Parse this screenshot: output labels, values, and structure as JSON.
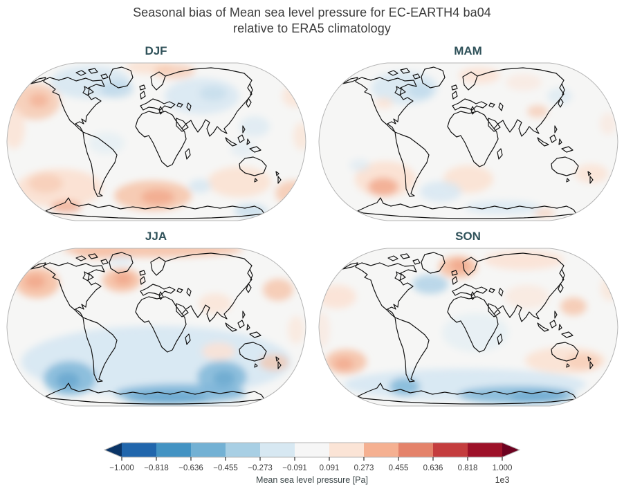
{
  "figure": {
    "title_line1": "Seasonal bias of Mean sea level pressure for EC-EARTH4 ba04",
    "title_line2": "relative to ERA5 climatology"
  },
  "chart_data": {
    "type": "heatmap",
    "subtype": "filled-contour-world-map",
    "projection": "Robinson",
    "colormap": "RdBu_r",
    "title": "Seasonal bias of Mean sea level pressure for EC-EARTH4 ba04 relative to ERA5 climatology",
    "variable": "Mean sea level pressure",
    "units": "Pa",
    "colorbar": {
      "label": "Mean sea level pressure [Pa]",
      "multiplier": "1e3",
      "ticks": [
        "−1.000",
        "−0.818",
        "−0.636",
        "−0.455",
        "−0.273",
        "−0.091",
        "0.091",
        "0.273",
        "0.455",
        "0.636",
        "0.818",
        "1.000"
      ],
      "boundaries_pa": [
        -1000,
        -818,
        -636,
        -455,
        -273,
        -91,
        91,
        273,
        455,
        636,
        818,
        1000
      ],
      "segment_colors": [
        "#2166ac",
        "#4393c3",
        "#73b1d4",
        "#a8cfe4",
        "#d7e8f2",
        "#f6f6f6",
        "#fbe4d6",
        "#f5b091",
        "#e4826a",
        "#c43d3e",
        "#9d1128"
      ],
      "extend_low_color": "#0b3567",
      "extend_high_color": "#6d0220",
      "tick_color": "#3b3b3b",
      "label_color": "#3a4547"
    },
    "map_style": {
      "background": "#f6f6f5",
      "outline_color": "#b4b4b4",
      "coastline_color": "#111111",
      "title_color": "#30525a"
    },
    "palette": {
      "b1": "#d8e8f2",
      "b2": "#b0d2e7",
      "b3": "#7cb5d8",
      "b4": "#4f97c6",
      "r1": "#fbe2d3",
      "r2": "#f6c0a4",
      "r3": "#ef9878",
      "r4": "#e27b5e"
    },
    "panels": [
      {
        "label": "DJF",
        "features": [
          [
            45,
            60,
            36,
            26,
            "r2",
            0.7
          ],
          [
            50,
            58,
            14,
            10,
            "r3",
            0.45
          ],
          [
            14,
            98,
            16,
            30,
            "r1",
            0.8
          ],
          [
            125,
            32,
            58,
            24,
            "b1",
            0.9
          ],
          [
            163,
            42,
            24,
            13,
            "b2",
            0.55
          ],
          [
            210,
            10,
            34,
            10,
            "r1",
            0.9
          ],
          [
            246,
            16,
            30,
            11,
            "r2",
            0.6
          ],
          [
            286,
            52,
            54,
            26,
            "b1",
            0.85
          ],
          [
            302,
            48,
            20,
            11,
            "b2",
            0.4
          ],
          [
            362,
            96,
            22,
            15,
            "b1",
            0.7
          ],
          [
            420,
            52,
            18,
            16,
            "r1",
            0.75
          ],
          [
            430,
            110,
            12,
            20,
            "r1",
            0.7
          ],
          [
            148,
            120,
            26,
            16,
            "b1",
            0.45
          ],
          [
            345,
            128,
            18,
            12,
            "b1",
            0.5
          ],
          [
            80,
            185,
            62,
            28,
            "r1",
            0.95
          ],
          [
            60,
            178,
            25,
            14,
            "r2",
            0.5
          ],
          [
            215,
            196,
            56,
            22,
            "r2",
            0.8
          ],
          [
            222,
            198,
            24,
            11,
            "r3",
            0.55
          ],
          [
            340,
            176,
            46,
            22,
            "r1",
            0.9
          ],
          [
            418,
            192,
            26,
            18,
            "r2",
            0.7
          ],
          [
            90,
            212,
            22,
            9,
            "r3",
            0.6
          ],
          [
            283,
            182,
            16,
            10,
            "b1",
            0.9
          ],
          [
            356,
            218,
            24,
            10,
            "b2",
            0.55
          ]
        ]
      },
      {
        "label": "MAM",
        "features": [
          [
            128,
            40,
            48,
            24,
            "b1",
            0.9
          ],
          [
            150,
            44,
            18,
            11,
            "b2",
            0.5
          ],
          [
            236,
            22,
            30,
            12,
            "r1",
            0.85
          ],
          [
            98,
            62,
            13,
            8,
            "r1",
            0.8
          ],
          [
            320,
            74,
            15,
            9,
            "r2",
            0.6
          ],
          [
            300,
            32,
            26,
            12,
            "r1",
            0.5
          ],
          [
            352,
            52,
            18,
            12,
            "b1",
            0.7
          ],
          [
            100,
            172,
            44,
            26,
            "r1",
            0.95
          ],
          [
            97,
            183,
            22,
            13,
            "r3",
            0.65
          ],
          [
            220,
            172,
            36,
            20,
            "r1",
            0.9
          ],
          [
            398,
            164,
            24,
            14,
            "r1",
            0.8
          ],
          [
            180,
            190,
            30,
            15,
            "b1",
            0.85
          ],
          [
            63,
            152,
            15,
            9,
            "b1",
            0.6
          ],
          [
            270,
            213,
            55,
            10,
            "b1",
            0.8
          ],
          [
            330,
            221,
            15,
            6,
            "r2",
            0.55
          ],
          [
            422,
            92,
            12,
            16,
            "r1",
            0.5
          ]
        ]
      },
      {
        "label": "JJA",
        "features": [
          [
            215,
            6,
            130,
            11,
            "r2",
            0.85
          ],
          [
            140,
            10,
            40,
            10,
            "r2",
            0.6
          ],
          [
            48,
            54,
            32,
            22,
            "r2",
            0.9
          ],
          [
            45,
            52,
            15,
            10,
            "r3",
            0.55
          ],
          [
            170,
            50,
            28,
            17,
            "r2",
            0.9
          ],
          [
            172,
            48,
            13,
            9,
            "r3",
            0.55
          ],
          [
            305,
            84,
            24,
            15,
            "r1",
            0.75
          ],
          [
            396,
            64,
            22,
            16,
            "r2",
            0.75
          ],
          [
            168,
            22,
            18,
            8,
            "b1",
            0.6
          ],
          [
            220,
            168,
            195,
            52,
            "b1",
            0.95
          ],
          [
            95,
            192,
            38,
            25,
            "b3",
            0.8
          ],
          [
            92,
            195,
            17,
            12,
            "b4",
            0.5
          ],
          [
            315,
            190,
            36,
            23,
            "b3",
            0.8
          ],
          [
            318,
            192,
            16,
            11,
            "b4",
            0.45
          ],
          [
            255,
            214,
            95,
            14,
            "b3",
            0.85
          ],
          [
            235,
            221,
            60,
            9,
            "b4",
            0.5
          ],
          [
            310,
            153,
            24,
            13,
            "r1",
            0.85
          ],
          [
            390,
            169,
            21,
            12,
            "r2",
            0.65
          ],
          [
            422,
            122,
            12,
            20,
            "r1",
            0.6
          ]
        ]
      },
      {
        "label": "SON",
        "features": [
          [
            205,
            31,
            28,
            16,
            "r2",
            0.9
          ],
          [
            207,
            29,
            13,
            9,
            "r3",
            0.55
          ],
          [
            300,
            21,
            58,
            14,
            "r1",
            0.85
          ],
          [
            165,
            56,
            26,
            14,
            "b2",
            0.85
          ],
          [
            30,
            74,
            28,
            17,
            "r1",
            0.85
          ],
          [
            305,
            74,
            32,
            17,
            "r1",
            0.55
          ],
          [
            372,
            88,
            19,
            13,
            "r2",
            0.75
          ],
          [
            424,
            62,
            13,
            18,
            "r1",
            0.65
          ],
          [
            230,
            126,
            48,
            28,
            "b1",
            0.45
          ],
          [
            43,
            168,
            30,
            18,
            "r2",
            0.85
          ],
          [
            40,
            171,
            14,
            9,
            "r3",
            0.5
          ],
          [
            360,
            166,
            58,
            19,
            "r1",
            0.9
          ],
          [
            385,
            168,
            25,
            12,
            "r2",
            0.5
          ],
          [
            215,
            201,
            175,
            23,
            "b1",
            0.95
          ],
          [
            128,
            204,
            22,
            13,
            "b3",
            0.8
          ],
          [
            290,
            216,
            85,
            13,
            "b3",
            0.8
          ],
          [
            322,
            219,
            42,
            8,
            "b4",
            0.45
          ],
          [
            8,
            122,
            12,
            26,
            "r1",
            0.5
          ]
        ]
      }
    ]
  }
}
